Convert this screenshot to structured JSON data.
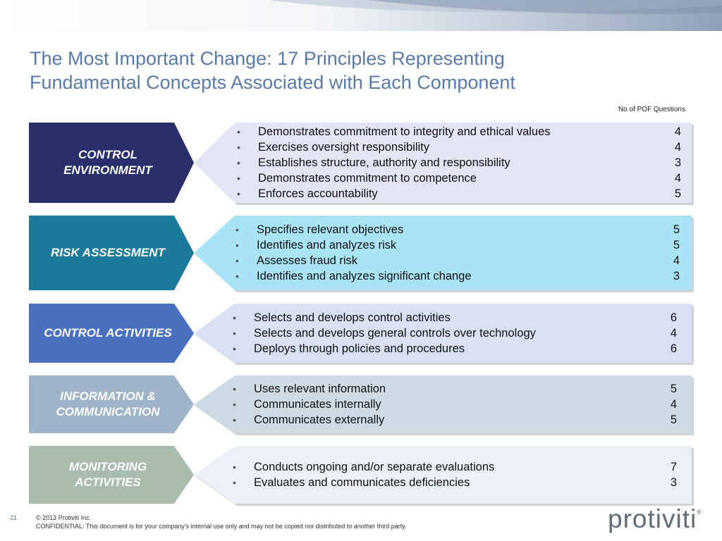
{
  "slide": {
    "title_line1": "The Most Important Change: 17 Principles Representing",
    "title_line2": "Fundamental Concepts Associated with Each Component",
    "pof_header": "No of POF Questions",
    "page_number": "21",
    "copyright": "© 2013 Protiviti Inc.",
    "confidential": "CONFIDENTIAL: This document is for your company's internal use only and may not be copied nor distributed to another third party.",
    "logo_text": "protiviti",
    "logo_mark": "®"
  },
  "components": [
    {
      "label": "CONTROL\nENVIRONMENT",
      "label_color": "#2a2e6b",
      "detail_color": "#e3e4f4",
      "principles": [
        {
          "text": "Demonstrates commitment to integrity and ethical values",
          "count": "4"
        },
        {
          "text": "Exercises oversight responsibility",
          "count": "4"
        },
        {
          "text": "Establishes structure, authority and responsibility",
          "count": "3"
        },
        {
          "text": "Demonstrates commitment to competence",
          "count": "4"
        },
        {
          "text": "Enforces accountability",
          "count": "5"
        }
      ]
    },
    {
      "label": "RISK ASSESSMENT",
      "label_color": "#1a7a9a",
      "detail_color": "#a9e4f6",
      "principles": [
        {
          "text": "Specifies relevant objectives",
          "count": "5"
        },
        {
          "text": "Identifies and analyzes risk",
          "count": "5"
        },
        {
          "text": "Assesses fraud risk",
          "count": "4"
        },
        {
          "text": "Identifies and analyzes significant change",
          "count": "3"
        }
      ]
    },
    {
      "label": "CONTROL ACTIVITIES",
      "label_color": "#4a70c0",
      "detail_color": "#d9e0f3",
      "principles": [
        {
          "text": "Selects and develops control activities",
          "count": "6"
        },
        {
          "text": "Selects and develops general controls over technology",
          "count": "4"
        },
        {
          "text": "Deploys through policies and procedures",
          "count": "6"
        }
      ]
    },
    {
      "label": "INFORMATION &\nCOMMUNICATION",
      "label_color": "#9fb4c8",
      "detail_color": "#cfdbe4",
      "principles": [
        {
          "text": "Uses relevant information",
          "count": "5"
        },
        {
          "text": "Communicates internally",
          "count": "4"
        },
        {
          "text": "Communicates externally",
          "count": "5"
        }
      ]
    },
    {
      "label": "MONITORING\nACTIVITIES",
      "label_color": "#a9bcae",
      "detail_color": "#eceff5",
      "principles": [
        {
          "text": "Conducts ongoing and/or separate evaluations",
          "count": "7"
        },
        {
          "text": "Evaluates and communicates deficiencies",
          "count": "3"
        }
      ]
    }
  ]
}
